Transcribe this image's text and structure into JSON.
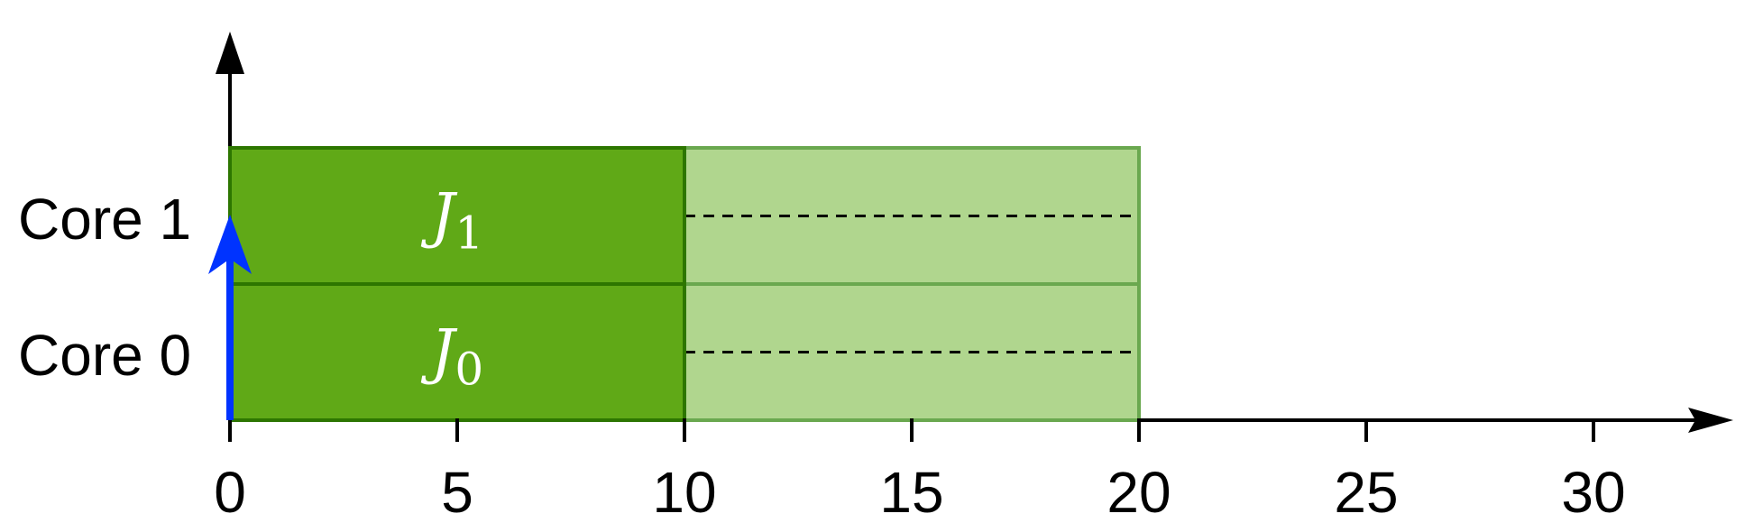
{
  "cores": [
    {
      "id": "core-0",
      "label": "Core 0"
    },
    {
      "id": "core-1",
      "label": "Core 1"
    }
  ],
  "x_axis": {
    "min": 0,
    "max": 32,
    "ticks": [
      0,
      5,
      10,
      15,
      20,
      25,
      30
    ],
    "tick_labels": [
      "0",
      "5",
      "10",
      "15",
      "20",
      "25",
      "30"
    ]
  },
  "jobs": [
    {
      "core": 0,
      "name": "J",
      "subscript": "0",
      "executed": [
        0,
        10
      ],
      "remaining": [
        10,
        20
      ]
    },
    {
      "core": 1,
      "name": "J",
      "subscript": "1",
      "executed": [
        0,
        10
      ],
      "remaining": [
        10,
        20
      ]
    }
  ],
  "release_arrow": {
    "time": 0
  },
  "colors": {
    "executed_fill": "#60a917",
    "executed_stroke": "#2d7600",
    "remaining_fill": "#b0d68e",
    "remaining_stroke": "#6aa84f",
    "axis": "#000000",
    "release_arrow": "#0033ff",
    "job_text": "#ffffff",
    "dashed_line": "#000000"
  }
}
